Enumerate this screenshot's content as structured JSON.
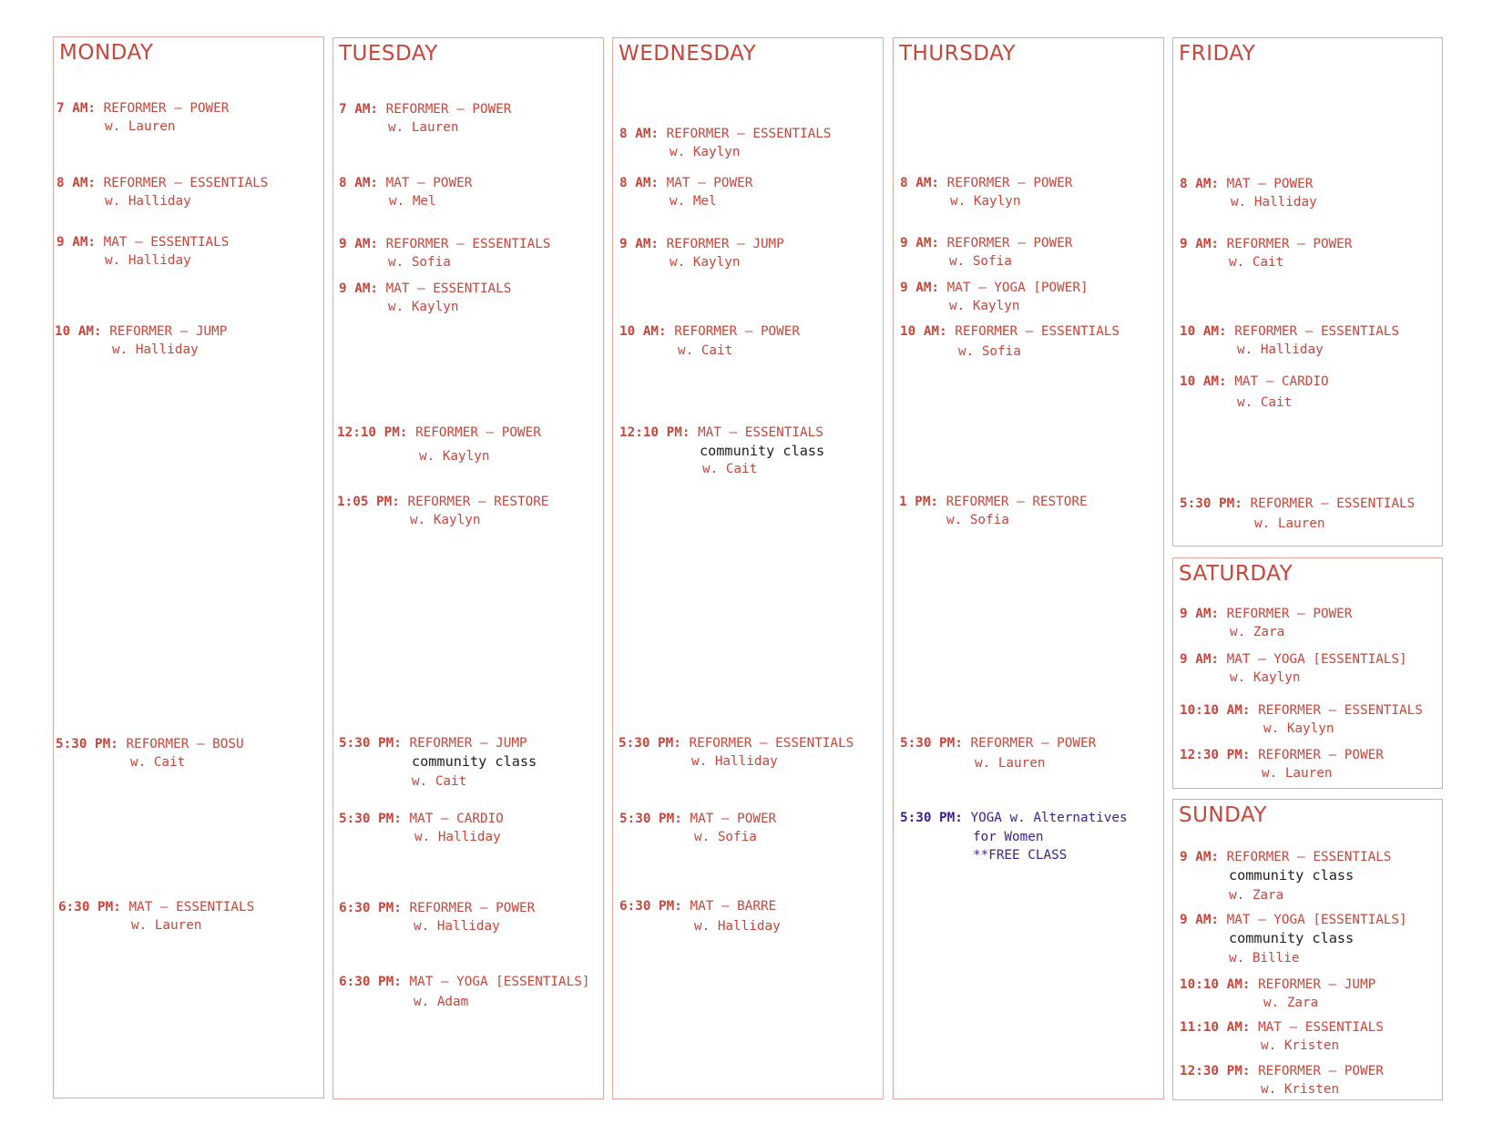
{
  "colors": {
    "accent": "#c8453a",
    "border": "#e2a79d",
    "note": "#1e1e1e",
    "special": "#3d1e8c"
  },
  "days": {
    "monday": {
      "title": "MONDAY",
      "classes": [
        {
          "time": "7 AM:",
          "name": "REFORMER – POWER",
          "instructor": "w. Lauren"
        },
        {
          "time": "8 AM:",
          "name": "REFORMER – ESSENTIALS",
          "instructor": "w. Halliday"
        },
        {
          "time": "9 AM:",
          "name": "MAT – ESSENTIALS",
          "instructor": "w. Halliday"
        },
        {
          "time": "10 AM:",
          "name": "REFORMER – JUMP",
          "instructor": "w. Halliday"
        },
        {
          "time": "5:30 PM:",
          "name": "REFORMER – BOSU",
          "instructor": "w. Cait"
        },
        {
          "time": "6:30 PM:",
          "name": "MAT – ESSENTIALS",
          "instructor": "w. Lauren"
        }
      ]
    },
    "tuesday": {
      "title": "TUESDAY",
      "classes": [
        {
          "time": "7 AM:",
          "name": "REFORMER – POWER",
          "instructor": "w. Lauren"
        },
        {
          "time": "8 AM:",
          "name": "MAT – POWER",
          "instructor": "w. Mel"
        },
        {
          "time": "9 AM:",
          "name": "REFORMER – ESSENTIALS",
          "instructor": "w. Sofia"
        },
        {
          "time": "9 AM:",
          "name": "MAT – ESSENTIALS",
          "instructor": "w. Kaylyn"
        },
        {
          "time": "12:10 PM:",
          "name": "REFORMER – POWER",
          "instructor": "w. Kaylyn"
        },
        {
          "time": "1:05 PM:",
          "name": "REFORMER – RESTORE",
          "instructor": "w. Kaylyn"
        },
        {
          "time": "5:30 PM:",
          "name": "REFORMER – JUMP",
          "note": "community class",
          "instructor": "w. Cait"
        },
        {
          "time": "5:30 PM:",
          "name": "MAT – CARDIO",
          "instructor": "w. Halliday"
        },
        {
          "time": "6:30 PM:",
          "name": "REFORMER – POWER",
          "instructor": "w. Halliday"
        },
        {
          "time": "6:30 PM:",
          "name": "MAT – YOGA [ESSENTIALS]",
          "instructor": "w. Adam"
        }
      ]
    },
    "wednesday": {
      "title": "WEDNESDAY",
      "classes": [
        {
          "time": "8 AM:",
          "name": "REFORMER – ESSENTIALS",
          "instructor": "w. Kaylyn"
        },
        {
          "time": "8 AM:",
          "name": "MAT – POWER",
          "instructor": "w. Mel"
        },
        {
          "time": "9 AM:",
          "name": "REFORMER – JUMP",
          "instructor": "w. Kaylyn"
        },
        {
          "time": "10 AM:",
          "name": "REFORMER – POWER",
          "instructor": "w. Cait"
        },
        {
          "time": "12:10 PM:",
          "name": "MAT – ESSENTIALS",
          "note": "community class",
          "instructor": "w. Cait"
        },
        {
          "time": "5:30 PM:",
          "name": "REFORMER – ESSENTIALS",
          "instructor": "w. Halliday"
        },
        {
          "time": "5:30 PM:",
          "name": "MAT – POWER",
          "instructor": "w. Sofia"
        },
        {
          "time": "6:30 PM:",
          "name": "MAT – BARRE",
          "instructor": "w. Halliday"
        }
      ]
    },
    "thursday": {
      "title": "THURSDAY",
      "classes": [
        {
          "time": "8 AM:",
          "name": "REFORMER – POWER",
          "instructor": "w. Kaylyn"
        },
        {
          "time": "9 AM:",
          "name": "REFORMER – POWER",
          "instructor": "w. Sofia"
        },
        {
          "time": "9 AM:",
          "name": "MAT – YOGA [POWER]",
          "instructor": "w. Kaylyn"
        },
        {
          "time": "10 AM:",
          "name": "REFORMER – ESSENTIALS",
          "instructor": "w. Sofia"
        },
        {
          "time": "1 PM:",
          "name": "REFORMER – RESTORE",
          "instructor": "w. Sofia"
        },
        {
          "time": "5:30 PM:",
          "name": "REFORMER – POWER",
          "instructor": "w. Lauren"
        },
        {
          "time": "5:30 PM:",
          "name": "YOGA w. Alternatives",
          "line2": "for Women",
          "line3": "**FREE CLASS"
        }
      ]
    },
    "friday": {
      "title": "FRIDAY",
      "classes": [
        {
          "time": "8 AM:",
          "name": "MAT – POWER",
          "instructor": "w. Halliday"
        },
        {
          "time": "9 AM:",
          "name": "REFORMER – POWER",
          "instructor": "w. Cait"
        },
        {
          "time": "10 AM:",
          "name": "REFORMER – ESSENTIALS",
          "instructor": "w. Halliday"
        },
        {
          "time": "10 AM:",
          "name": "MAT – CARDIO",
          "instructor": "w. Cait"
        },
        {
          "time": "5:30 PM:",
          "name": "REFORMER – ESSENTIALS",
          "instructor": "w. Lauren"
        }
      ]
    },
    "saturday": {
      "title": "SATURDAY",
      "classes": [
        {
          "time": "9 AM:",
          "name": "REFORMER – POWER",
          "instructor": "w. Zara"
        },
        {
          "time": "9 AM:",
          "name": "MAT – YOGA [ESSENTIALS]",
          "instructor": "w. Kaylyn"
        },
        {
          "time": "10:10 AM:",
          "name": "REFORMER – ESSENTIALS",
          "instructor": "w. Kaylyn"
        },
        {
          "time": "12:30 PM:",
          "name": "REFORMER – POWER",
          "instructor": "w. Lauren"
        }
      ]
    },
    "sunday": {
      "title": "SUNDAY",
      "classes": [
        {
          "time": "9 AM:",
          "name": "REFORMER – ESSENTIALS",
          "note": "community class",
          "instructor": "w. Zara"
        },
        {
          "time": "9 AM:",
          "name": "MAT – YOGA [ESSENTIALS]",
          "note": "community class",
          "instructor": "w. Billie"
        },
        {
          "time": "10:10 AM:",
          "name": "REFORMER – JUMP",
          "instructor": "w. Zara"
        },
        {
          "time": "11:10 AM:",
          "name": "MAT – ESSENTIALS",
          "instructor": "w. Kristen"
        },
        {
          "time": "12:30 PM:",
          "name": "REFORMER – POWER",
          "instructor": "w. Kristen"
        }
      ]
    }
  }
}
